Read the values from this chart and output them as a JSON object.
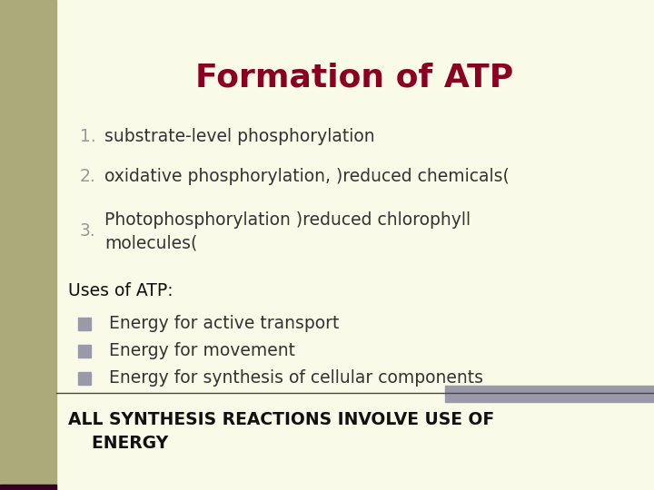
{
  "title": "Formation of ATP",
  "title_color": "#8B0020",
  "title_fontsize": 26,
  "bg_color": "#FAFAE8",
  "left_bar_color": "#AAAAAA",
  "numbered_items": [
    "substrate-level phosphorylation",
    "oxidative phosphorylation, )reduced chemicals(",
    "Photophosphorylation )reduced chlorophyll\nmolecules("
  ],
  "numbered_color": "#999999",
  "numbered_text_color": "#333333",
  "uses_header": "Uses of ATP:",
  "bullet_items": [
    "Energy for active transport",
    "Energy for movement",
    "Energy for synthesis of cellular components"
  ],
  "bullet_color": "#9999AA",
  "bullet_text_color": "#333333",
  "footer_line1": "ALL SYNTHESIS REACTIONS INVOLVE USE OF",
  "footer_line2": "    ENERGY",
  "footer_color": "#111111",
  "content_fontsize": 13.5,
  "uses_fontsize": 13.5,
  "footer_fontsize": 13.5
}
